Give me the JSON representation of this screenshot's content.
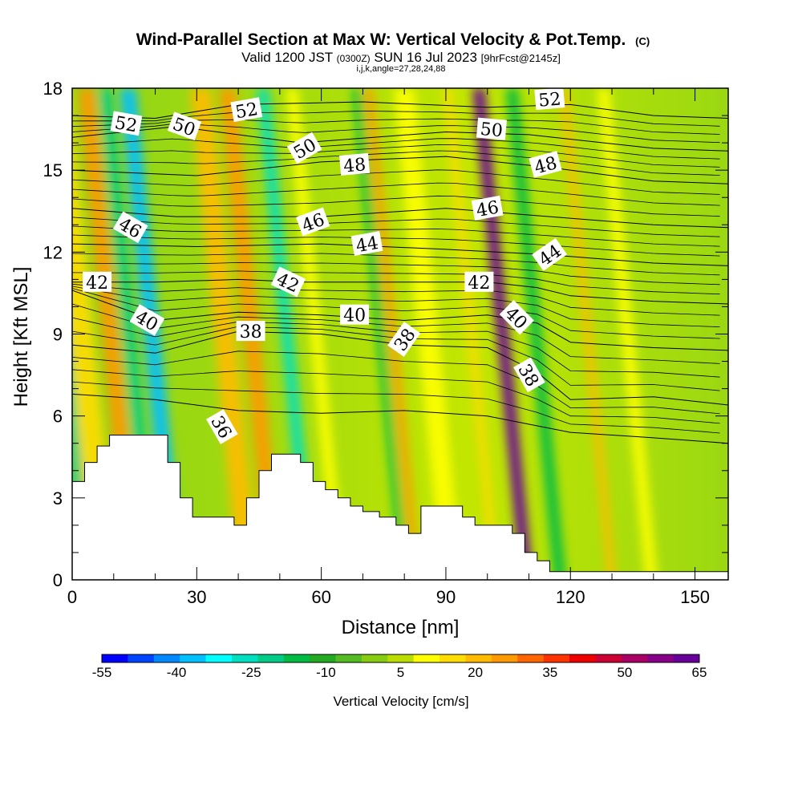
{
  "chart_data": {
    "type": "heatmap",
    "title": "Wind-Parallel Section at Max W: Vertical Velocity & Pot.Temp.",
    "title_units": "(C)",
    "subtitle": {
      "prefix": "Valid 1200 JST",
      "utc": "(0300Z)",
      "date": "SUN 16 Jul 2023",
      "forecast": "[9hrFcst@2145z]"
    },
    "grid_info": "i,j,k,angle=27,28,24,88",
    "xlabel": "Distance [nm]",
    "ylabel": "Height [Kft MSL]",
    "xlim": [
      0,
      158
    ],
    "ylim": [
      0,
      18
    ],
    "x_ticks": [
      "0",
      "30",
      "60",
      "90",
      "120",
      "150"
    ],
    "y_ticks": [
      "0",
      "3",
      "6",
      "9",
      "12",
      "15",
      "18"
    ],
    "colorbar": {
      "label": "Vertical Velocity [cm/s]",
      "tick_labels": [
        "-55",
        "-40",
        "-25",
        "-10",
        "5",
        "20",
        "35",
        "50",
        "65"
      ],
      "colors": [
        "#0000ff",
        "#0044ff",
        "#0088ff",
        "#00c0ff",
        "#00ffff",
        "#00e0c0",
        "#00cc88",
        "#00bb44",
        "#22aa22",
        "#55bb22",
        "#88cc11",
        "#bbdd00",
        "#ffff00",
        "#ffdd00",
        "#ffbb00",
        "#ff9900",
        "#ff6600",
        "#ff3300",
        "#ee0000",
        "#cc0033",
        "#aa0066",
        "#880088",
        "#660099"
      ]
    },
    "velocity_bands": [
      {
        "x": 2,
        "w": 3,
        "v": -25
      },
      {
        "x": 5,
        "w": 6,
        "v": 15
      },
      {
        "x": 13,
        "w": 4,
        "v": 25
      },
      {
        "x": 18,
        "w": 3,
        "v": -25
      },
      {
        "x": 23,
        "w": 4,
        "v": -40
      },
      {
        "x": 40,
        "w": 5,
        "v": 20
      },
      {
        "x": 47,
        "w": 4,
        "v": 25
      },
      {
        "x": 56,
        "w": 3,
        "v": -30
      },
      {
        "x": 63,
        "w": 3,
        "v": 10
      },
      {
        "x": 79,
        "w": 2,
        "v": -15
      },
      {
        "x": 82,
        "w": 2,
        "v": 25
      },
      {
        "x": 89,
        "w": 5,
        "v": 12
      },
      {
        "x": 101,
        "w": 2,
        "v": 15
      },
      {
        "x": 108,
        "w": 3,
        "v": 65
      },
      {
        "x": 116,
        "w": 3,
        "v": -15
      },
      {
        "x": 129,
        "w": 2,
        "v": 20
      },
      {
        "x": 138,
        "w": 3,
        "v": 12
      }
    ],
    "theta_contours": [
      {
        "label": "36",
        "pts": [
          [
            0,
            6.8
          ],
          [
            20,
            6.6
          ],
          [
            40,
            6.2
          ],
          [
            60,
            6.1
          ],
          [
            80,
            6.2
          ],
          [
            100,
            6.0
          ],
          [
            120,
            5.4
          ],
          [
            140,
            5.2
          ],
          [
            158,
            5.0
          ]
        ],
        "label_at": [
          36,
          5.6
        ],
        "angle": 60
      },
      {
        "label": "38",
        "pts": [
          [
            0,
            8.6
          ],
          [
            20,
            8.3
          ],
          [
            40,
            9.1
          ],
          [
            60,
            9.0
          ],
          [
            80,
            8.6
          ],
          [
            100,
            8.5
          ],
          [
            112,
            7.6
          ],
          [
            120,
            6.6
          ],
          [
            140,
            6.7
          ],
          [
            158,
            6.4
          ]
        ],
        "label_at": [
          43,
          9.1
        ],
        "angle": 0
      },
      {
        "label": "38",
        "pts": [],
        "label_at": [
          80,
          8.8
        ],
        "angle": -55
      },
      {
        "label": "38",
        "pts": [],
        "label_at": [
          110,
          7.5
        ],
        "angle": 60
      },
      {
        "label": "40",
        "pts": [
          [
            0,
            10.6
          ],
          [
            20,
            9.5
          ],
          [
            40,
            9.8
          ],
          [
            60,
            9.7
          ],
          [
            80,
            9.5
          ],
          [
            100,
            9.7
          ],
          [
            112,
            9.4
          ],
          [
            120,
            8.7
          ],
          [
            140,
            8.5
          ],
          [
            158,
            8.4
          ]
        ],
        "label_at": [
          18,
          9.5
        ],
        "angle": 30
      },
      {
        "label": "40",
        "pts": [],
        "label_at": [
          68,
          9.7
        ],
        "angle": 0
      },
      {
        "label": "40",
        "pts": [],
        "label_at": [
          107,
          9.6
        ],
        "angle": 45
      },
      {
        "label": "42",
        "pts": [
          [
            0,
            10.9
          ],
          [
            20,
            10.9
          ],
          [
            40,
            11.0
          ],
          [
            55,
            10.9
          ],
          [
            80,
            10.9
          ],
          [
            100,
            10.9
          ],
          [
            112,
            10.7
          ],
          [
            120,
            10.4
          ],
          [
            140,
            10.2
          ],
          [
            158,
            10.1
          ]
        ],
        "label_at": [
          6,
          10.9
        ],
        "angle": 0
      },
      {
        "label": "42",
        "pts": [],
        "label_at": [
          52,
          10.9
        ],
        "angle": 25
      },
      {
        "label": "42",
        "pts": [],
        "label_at": [
          98,
          10.9
        ],
        "angle": 0
      },
      {
        "label": "44",
        "pts": [
          [
            0,
            12.3
          ],
          [
            30,
            12.2
          ],
          [
            60,
            12.3
          ],
          [
            90,
            12.1
          ],
          [
            115,
            11.9
          ],
          [
            140,
            11.6
          ],
          [
            158,
            11.5
          ]
        ],
        "label_at": [
          71,
          12.3
        ],
        "angle": -10
      },
      {
        "label": "44",
        "pts": [],
        "label_at": [
          115,
          11.9
        ],
        "angle": -35
      },
      {
        "label": "46",
        "pts": [
          [
            0,
            13.6
          ],
          [
            25,
            13.3
          ],
          [
            60,
            13.3
          ],
          [
            90,
            13.6
          ],
          [
            115,
            13.3
          ],
          [
            140,
            13.0
          ],
          [
            158,
            12.9
          ]
        ],
        "label_at": [
          14,
          12.9
        ],
        "angle": 30
      },
      {
        "label": "46",
        "pts": [],
        "label_at": [
          58,
          13.1
        ],
        "angle": -20
      },
      {
        "label": "46",
        "pts": [],
        "label_at": [
          100,
          13.6
        ],
        "angle": -10
      },
      {
        "label": "48",
        "pts": [
          [
            0,
            15.0
          ],
          [
            30,
            14.8
          ],
          [
            60,
            15.3
          ],
          [
            90,
            15.5
          ],
          [
            115,
            15.1
          ],
          [
            140,
            14.6
          ],
          [
            158,
            14.5
          ]
        ],
        "label_at": [
          68,
          15.2
        ],
        "angle": -5
      },
      {
        "label": "48",
        "pts": [],
        "label_at": [
          114,
          15.2
        ],
        "angle": -15
      },
      {
        "label": "50",
        "pts": [
          [
            0,
            16.2
          ],
          [
            25,
            16.6
          ],
          [
            55,
            16.0
          ],
          [
            90,
            16.4
          ],
          [
            110,
            16.3
          ],
          [
            140,
            15.8
          ],
          [
            158,
            15.7
          ]
        ],
        "label_at": [
          27,
          16.6
        ],
        "angle": 20
      },
      {
        "label": "50",
        "pts": [],
        "label_at": [
          56,
          15.8
        ],
        "angle": -30
      },
      {
        "label": "50",
        "pts": [],
        "label_at": [
          101,
          16.5
        ],
        "angle": 5
      },
      {
        "label": "52",
        "pts": [
          [
            0,
            17.0
          ],
          [
            20,
            16.9
          ],
          [
            40,
            17.4
          ],
          [
            70,
            17.5
          ],
          [
            100,
            17.3
          ],
          [
            120,
            17.4
          ],
          [
            140,
            17.0
          ],
          [
            158,
            16.9
          ]
        ],
        "label_at": [
          13,
          16.7
        ],
        "angle": 10
      },
      {
        "label": "52",
        "pts": [],
        "label_at": [
          42,
          17.2
        ],
        "angle": -10
      },
      {
        "label": "52",
        "pts": [],
        "label_at": [
          115,
          17.6
        ],
        "angle": -5
      }
    ],
    "terrain": [
      [
        0,
        3.6
      ],
      [
        3,
        3.6
      ],
      [
        3,
        4.3
      ],
      [
        6,
        4.3
      ],
      [
        6,
        4.9
      ],
      [
        9,
        4.9
      ],
      [
        9,
        5.3
      ],
      [
        23,
        5.3
      ],
      [
        23,
        4.3
      ],
      [
        26,
        4.3
      ],
      [
        26,
        3.0
      ],
      [
        29,
        3.0
      ],
      [
        29,
        2.3
      ],
      [
        39,
        2.3
      ],
      [
        39,
        2.0
      ],
      [
        42,
        2.0
      ],
      [
        42,
        3.0
      ],
      [
        45,
        3.0
      ],
      [
        45,
        4.0
      ],
      [
        48,
        4.0
      ],
      [
        48,
        4.6
      ],
      [
        55,
        4.6
      ],
      [
        55,
        4.3
      ],
      [
        58,
        4.3
      ],
      [
        58,
        3.6
      ],
      [
        61,
        3.6
      ],
      [
        61,
        3.3
      ],
      [
        64,
        3.3
      ],
      [
        64,
        3.0
      ],
      [
        67,
        3.0
      ],
      [
        67,
        2.7
      ],
      [
        70,
        2.7
      ],
      [
        70,
        2.5
      ],
      [
        74,
        2.5
      ],
      [
        74,
        2.3
      ],
      [
        78,
        2.3
      ],
      [
        78,
        2.0
      ],
      [
        81,
        2.0
      ],
      [
        81,
        1.7
      ],
      [
        84,
        1.7
      ],
      [
        84,
        2.7
      ],
      [
        94,
        2.7
      ],
      [
        94,
        2.3
      ],
      [
        97,
        2.3
      ],
      [
        97,
        2.0
      ],
      [
        106,
        2.0
      ],
      [
        106,
        1.7
      ],
      [
        109,
        1.7
      ],
      [
        109,
        1.0
      ],
      [
        112,
        1.0
      ],
      [
        112,
        0.7
      ],
      [
        115,
        0.7
      ],
      [
        115,
        0.3
      ],
      [
        158,
        0.3
      ]
    ]
  }
}
